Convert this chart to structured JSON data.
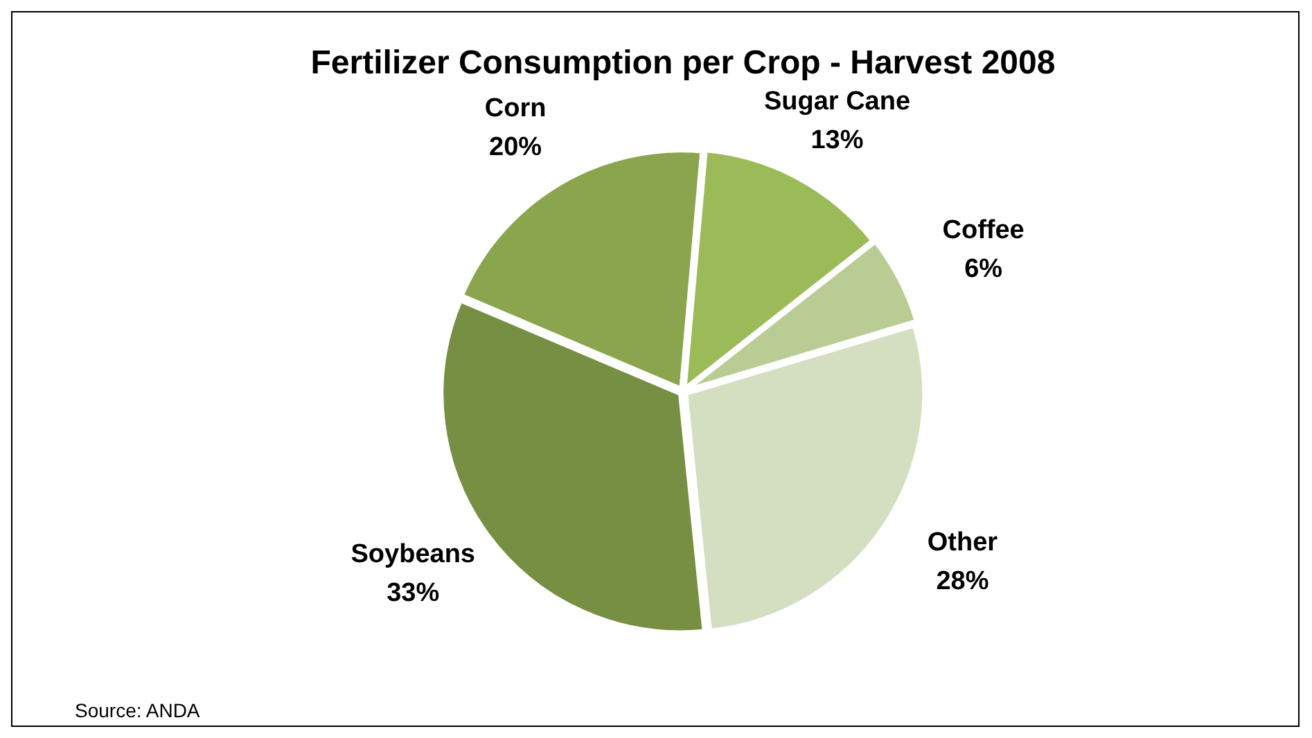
{
  "chart_data": {
    "type": "pie",
    "title": "Fertilizer Consumption per Crop - Harvest 2008",
    "categories": [
      "Sugar Cane",
      "Coffee",
      "Other",
      "Soybeans",
      "Corn"
    ],
    "values": [
      13,
      6,
      28,
      33,
      20
    ],
    "colors": [
      "#9bbb59",
      "#b8cc94",
      "#d3dfc0",
      "#778f42",
      "#8aa54e"
    ],
    "value_labels": [
      "13%",
      "6%",
      "28%",
      "33%",
      "20%"
    ],
    "legend": false,
    "annotations": [
      "Source: ANDA"
    ]
  }
}
